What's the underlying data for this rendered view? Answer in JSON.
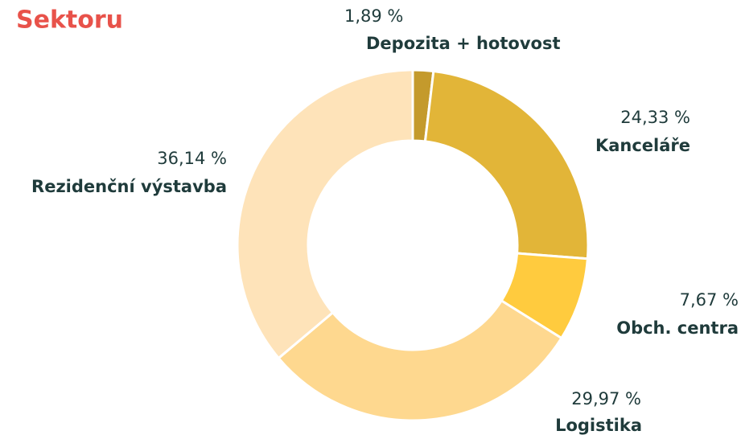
{
  "chart_data": {
    "type": "donut",
    "title": "Sektoru",
    "categories": [
      "Depozita + hotovost",
      "Kanceláře",
      "Obch. centra",
      "Logistika",
      "Rezidenční výstavba"
    ],
    "values": [
      1.89,
      24.33,
      7.67,
      29.97,
      36.14
    ],
    "value_labels": [
      "1,89 %",
      "24,33 %",
      "7,67 %",
      "29,97 %",
      "36,14 %"
    ],
    "colors": [
      "#c49a2c",
      "#e2b538",
      "#ffcb3e",
      "#fed88f",
      "#fee3b9"
    ]
  }
}
